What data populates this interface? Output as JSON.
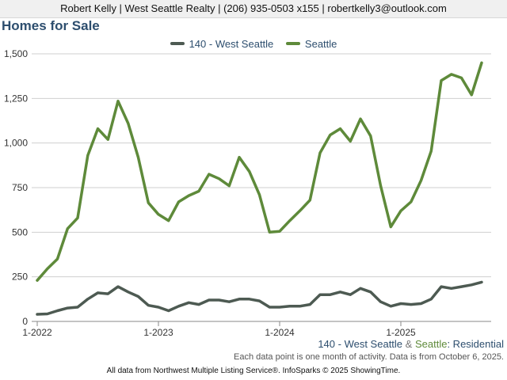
{
  "header": {
    "contact": "Robert Kelly | West Seattle Realty | (206) 935-0503 x155 | robertkelly3@outlook.com"
  },
  "chart_data": {
    "type": "line",
    "title": "Homes for Sale",
    "ylim": [
      0,
      1500
    ],
    "yticks": [
      0,
      250,
      500,
      750,
      1000,
      1250,
      1500
    ],
    "ytick_labels": [
      "0",
      "250",
      "500",
      "750",
      "1,000",
      "1,250",
      "1,500"
    ],
    "xticks": [
      "2022-01",
      "2023-01",
      "2024-01",
      "2025-01"
    ],
    "xtick_labels": [
      "1-2022",
      "1-2023",
      "1-2024",
      "1-2025"
    ],
    "grid": "horizontal",
    "legend_position": "top",
    "x": [
      "2022-01",
      "2022-02",
      "2022-03",
      "2022-04",
      "2022-05",
      "2022-06",
      "2022-07",
      "2022-08",
      "2022-09",
      "2022-10",
      "2022-11",
      "2022-12",
      "2023-01",
      "2023-02",
      "2023-03",
      "2023-04",
      "2023-05",
      "2023-06",
      "2023-07",
      "2023-08",
      "2023-09",
      "2023-10",
      "2023-11",
      "2023-12",
      "2024-01",
      "2024-02",
      "2024-03",
      "2024-04",
      "2024-05",
      "2024-06",
      "2024-07",
      "2024-08",
      "2024-09",
      "2024-10",
      "2024-11",
      "2024-12",
      "2025-01",
      "2025-02",
      "2025-03",
      "2025-04",
      "2025-05",
      "2025-06",
      "2025-07",
      "2025-08",
      "2025-09"
    ],
    "series": [
      {
        "name": "140 - West Seattle",
        "color": "#4d5a52",
        "values": [
          40,
          42,
          60,
          75,
          80,
          125,
          160,
          155,
          195,
          165,
          140,
          90,
          80,
          60,
          85,
          105,
          95,
          120,
          120,
          110,
          125,
          125,
          115,
          80,
          80,
          85,
          85,
          95,
          150,
          150,
          165,
          150,
          185,
          165,
          110,
          85,
          100,
          95,
          100,
          125,
          195,
          185,
          195,
          205,
          220
        ]
      },
      {
        "name": "Seattle",
        "color": "#5e8a3a",
        "values": [
          230,
          295,
          350,
          520,
          580,
          930,
          1080,
          1020,
          1235,
          1110,
          920,
          665,
          600,
          565,
          670,
          705,
          730,
          825,
          800,
          760,
          920,
          840,
          710,
          500,
          505,
          565,
          620,
          680,
          945,
          1045,
          1080,
          1010,
          1135,
          1040,
          760,
          530,
          620,
          670,
          790,
          955,
          1350,
          1385,
          1365,
          1270,
          1450
        ]
      }
    ]
  },
  "footer": {
    "series_a": "140 - West Seattle",
    "amp": "&",
    "series_b": "Seattle",
    "category": ": Residential",
    "note": "Each data point is one month of activity. Data is from October 6, 2025.",
    "credit": "All data from Northwest Multiple Listing Service®. InfoSparks © 2025 ShowingTime."
  }
}
